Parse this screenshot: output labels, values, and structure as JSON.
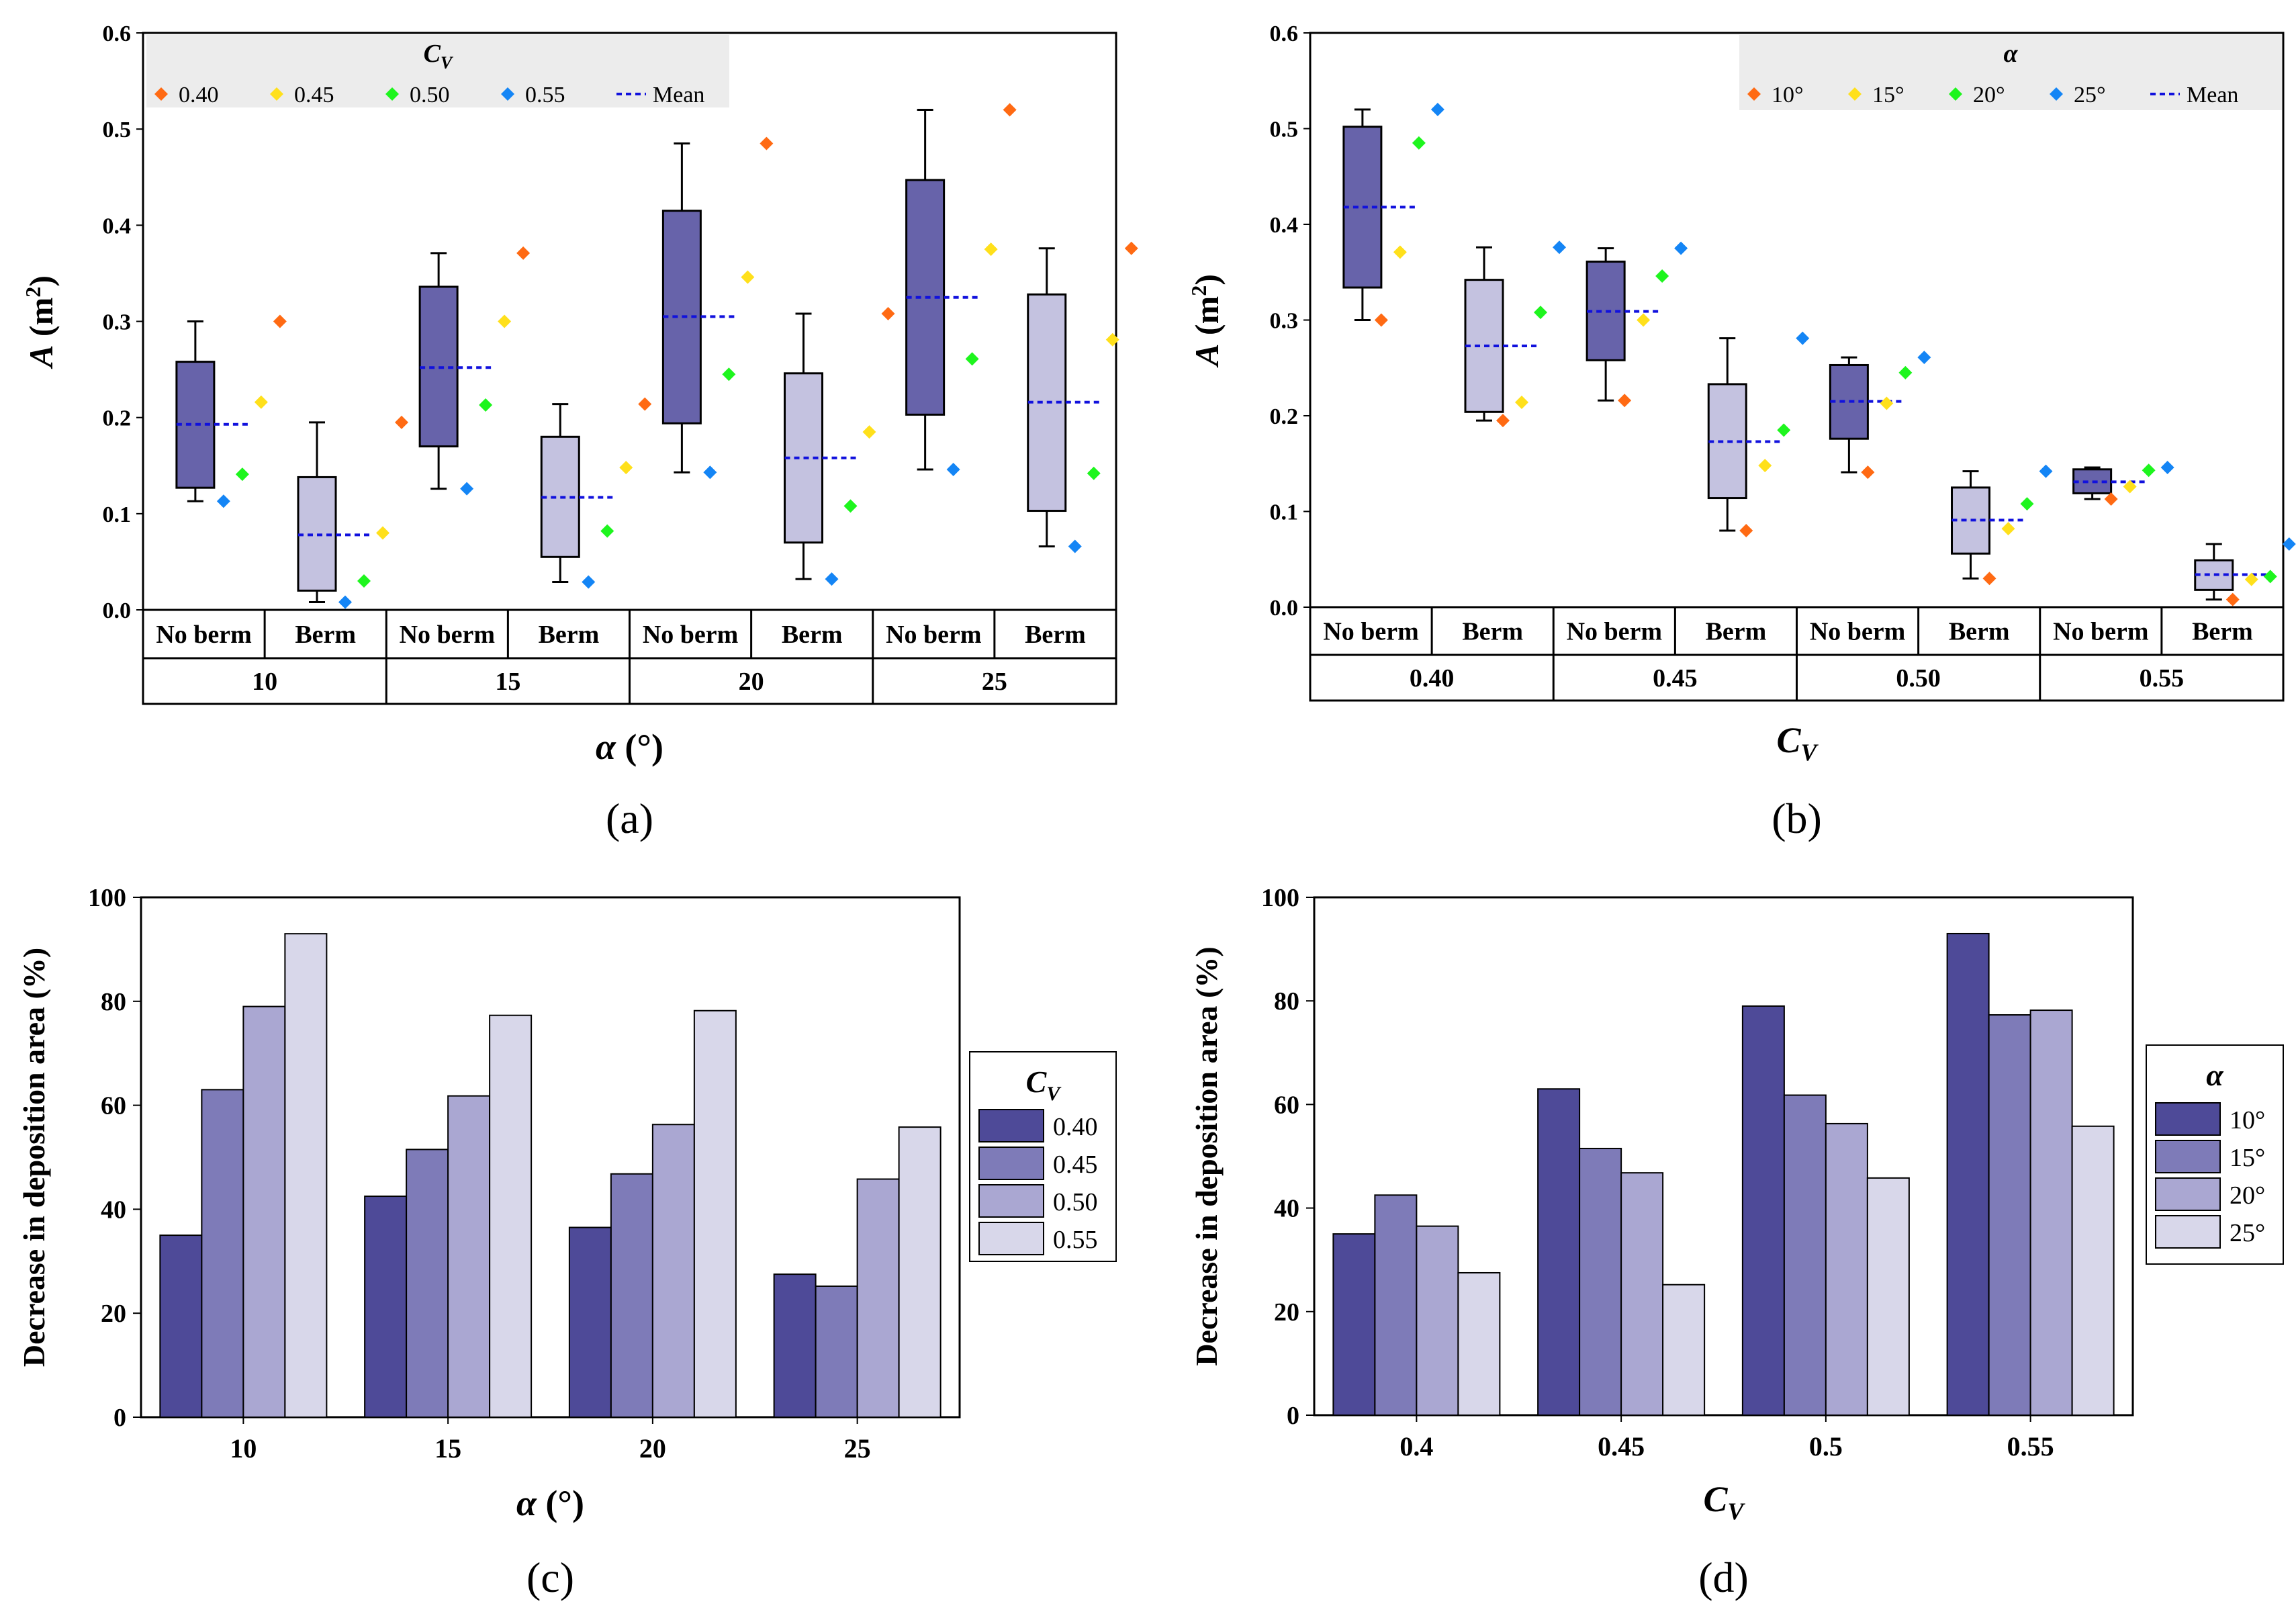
{
  "chart_data": [
    {
      "id": "a",
      "type": "box",
      "panel_label": "(a)",
      "ylabel_italic": "A",
      "ylabel_rest": " (m",
      "ylabel_sup": "2",
      "ylabel_close": ")",
      "xlabel_italic": "α",
      "xlabel_rest": " (°)",
      "yticks": [
        "0.0",
        "0.1",
        "0.2",
        "0.3",
        "0.4",
        "0.5",
        "0.6"
      ],
      "ylim": [
        0,
        0.6
      ],
      "legend": {
        "title_main": "C",
        "title_sub": "V",
        "items": [
          "0.40",
          "0.45",
          "0.50",
          "0.55"
        ],
        "mean_label": "Mean"
      },
      "groups": [
        {
          "label": "10",
          "boxes": [
            {
              "label": "No berm",
              "min": 0.113,
              "q1": 0.127,
              "q3": 0.258,
              "max": 0.3,
              "mean": 0.193,
              "points": [
                0.3,
                0.216,
                0.141,
                0.113
              ]
            },
            {
              "label": "Berm",
              "min": 0.008,
              "q1": 0.02,
              "q3": 0.138,
              "max": 0.195,
              "mean": 0.078,
              "points": [
                0.195,
                0.08,
                0.03,
                0.008
              ]
            }
          ]
        },
        {
          "label": "15",
          "boxes": [
            {
              "label": "No berm",
              "min": 0.126,
              "q1": 0.17,
              "q3": 0.336,
              "max": 0.371,
              "mean": 0.252,
              "points": [
                0.371,
                0.3,
                0.213,
                0.126
              ]
            },
            {
              "label": "Berm",
              "min": 0.029,
              "q1": 0.055,
              "q3": 0.18,
              "max": 0.214,
              "mean": 0.117,
              "points": [
                0.214,
                0.148,
                0.082,
                0.029
              ]
            }
          ]
        },
        {
          "label": "20",
          "boxes": [
            {
              "label": "No berm",
              "min": 0.143,
              "q1": 0.194,
              "q3": 0.415,
              "max": 0.485,
              "mean": 0.305,
              "points": [
                0.485,
                0.346,
                0.245,
                0.143
              ]
            },
            {
              "label": "Berm",
              "min": 0.032,
              "q1": 0.07,
              "q3": 0.246,
              "max": 0.308,
              "mean": 0.158,
              "points": [
                0.308,
                0.185,
                0.108,
                0.032
              ]
            }
          ]
        },
        {
          "label": "25",
          "boxes": [
            {
              "label": "No berm",
              "min": 0.146,
              "q1": 0.203,
              "q3": 0.447,
              "max": 0.52,
              "mean": 0.325,
              "points": [
                0.52,
                0.375,
                0.261,
                0.146
              ]
            },
            {
              "label": "Berm",
              "min": 0.066,
              "q1": 0.103,
              "q3": 0.328,
              "max": 0.376,
              "mean": 0.216,
              "points": [
                0.376,
                0.281,
                0.142,
                0.066
              ]
            }
          ]
        }
      ]
    },
    {
      "id": "b",
      "type": "box",
      "panel_label": "(b)",
      "ylabel_italic": "A",
      "ylabel_rest": " (m",
      "ylabel_sup": "2",
      "ylabel_close": ")",
      "xlabel_italic": "C",
      "xlabel_sub": "V",
      "yticks": [
        "0.0",
        "0.1",
        "0.2",
        "0.3",
        "0.4",
        "0.5",
        "0.6"
      ],
      "ylim": [
        0,
        0.6
      ],
      "legend": {
        "title_main": "α",
        "title_sub": "",
        "items": [
          "10°",
          "15°",
          "20°",
          "25°"
        ],
        "mean_label": "Mean"
      },
      "groups": [
        {
          "label": "0.40",
          "boxes": [
            {
              "label": "No berm",
              "min": 0.3,
              "q1": 0.334,
              "q3": 0.502,
              "max": 0.52,
              "mean": 0.418,
              "points": [
                0.3,
                0.371,
                0.485,
                0.52
              ]
            },
            {
              "label": "Berm",
              "min": 0.195,
              "q1": 0.204,
              "q3": 0.342,
              "max": 0.376,
              "mean": 0.273,
              "points": [
                0.195,
                0.214,
                0.308,
                0.376
              ]
            }
          ]
        },
        {
          "label": "0.45",
          "boxes": [
            {
              "label": "No berm",
              "min": 0.216,
              "q1": 0.258,
              "q3": 0.361,
              "max": 0.375,
              "mean": 0.309,
              "points": [
                0.216,
                0.3,
                0.346,
                0.375
              ]
            },
            {
              "label": "Berm",
              "min": 0.08,
              "q1": 0.114,
              "q3": 0.233,
              "max": 0.281,
              "mean": 0.173,
              "points": [
                0.08,
                0.148,
                0.185,
                0.281
              ]
            }
          ]
        },
        {
          "label": "0.50",
          "boxes": [
            {
              "label": "No berm",
              "min": 0.141,
              "q1": 0.176,
              "q3": 0.253,
              "max": 0.261,
              "mean": 0.215,
              "points": [
                0.141,
                0.213,
                0.245,
                0.261
              ]
            },
            {
              "label": "Berm",
              "min": 0.03,
              "q1": 0.056,
              "q3": 0.125,
              "max": 0.142,
              "mean": 0.091,
              "points": [
                0.03,
                0.082,
                0.108,
                0.142
              ]
            }
          ]
        },
        {
          "label": "0.55",
          "boxes": [
            {
              "label": "No berm",
              "min": 0.113,
              "q1": 0.119,
              "q3": 0.144,
              "max": 0.146,
              "mean": 0.131,
              "points": [
                0.113,
                0.126,
                0.143,
                0.146
              ]
            },
            {
              "label": "Berm",
              "min": 0.008,
              "q1": 0.018,
              "q3": 0.049,
              "max": 0.066,
              "mean": 0.034,
              "points": [
                0.008,
                0.029,
                0.032,
                0.066
              ]
            }
          ]
        }
      ]
    },
    {
      "id": "c",
      "type": "bar",
      "panel_label": "(c)",
      "ylabel": "Decrease in deposition area (%)",
      "xlabel_italic": "α",
      "xlabel_rest": " (°)",
      "yticks": [
        "0",
        "20",
        "40",
        "60",
        "80",
        "100"
      ],
      "ylim": [
        0,
        100
      ],
      "categories": [
        "10",
        "15",
        "20",
        "25"
      ],
      "legend": {
        "title_main": "C",
        "title_sub": "V"
      },
      "series": [
        {
          "name": "0.40",
          "values": [
            35,
            42.5,
            36.5,
            27.5
          ]
        },
        {
          "name": "0.45",
          "values": [
            63,
            51.5,
            46.8,
            25.2
          ]
        },
        {
          "name": "0.50",
          "values": [
            79,
            61.8,
            56.3,
            45.8
          ]
        },
        {
          "name": "0.55",
          "values": [
            93,
            77.3,
            78.2,
            55.8
          ]
        }
      ]
    },
    {
      "id": "d",
      "type": "bar",
      "panel_label": "(d)",
      "ylabel": "Decrease in deposition area (%)",
      "xlabel_italic": "C",
      "xlabel_sub": "V",
      "yticks": [
        "0",
        "20",
        "40",
        "60",
        "80",
        "100"
      ],
      "ylim": [
        0,
        100
      ],
      "categories": [
        "0.4",
        "0.45",
        "0.5",
        "0.55"
      ],
      "legend": {
        "title_main": "α",
        "title_sub": ""
      },
      "series": [
        {
          "name": "10°",
          "values": [
            35,
            63,
            79,
            93
          ]
        },
        {
          "name": "15°",
          "values": [
            42.5,
            51.5,
            61.8,
            77.3
          ]
        },
        {
          "name": "20°",
          "values": [
            36.5,
            46.8,
            56.3,
            78.2
          ]
        },
        {
          "name": "25°",
          "values": [
            27.5,
            25.2,
            45.8,
            55.8
          ]
        }
      ]
    }
  ],
  "colors": {
    "box_no_berm": "#6763aa",
    "box_berm": "#c4c2e0",
    "mean_line": "#1111dd",
    "markers": [
      "#ff6a13",
      "#ffe01b",
      "#1ef51e",
      "#1485f5"
    ],
    "bars": [
      "#4e4a98",
      "#7e7bb8",
      "#aaa7d2",
      "#d8d7ea"
    ],
    "legend_bg": "#ececec"
  }
}
